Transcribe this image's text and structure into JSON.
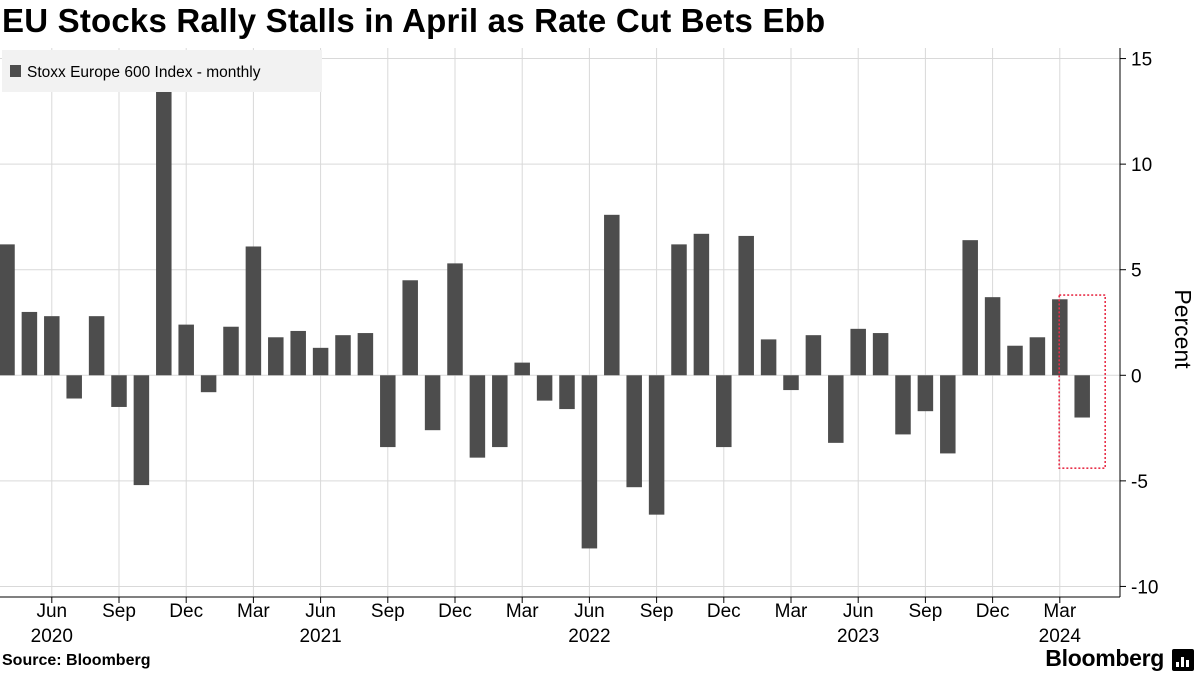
{
  "title": "EU Stocks Rally Stalls in April as Rate Cut Bets Ebb",
  "source": "Source: Bloomberg",
  "brand": "Bloomberg",
  "brand_icon": "bloomberg-chart-logo-icon",
  "colors": {
    "bar": "#4d4d4d",
    "grid": "#d9d9d9",
    "highlight": "#e8304a",
    "legend_bg": "#f2f2f2"
  },
  "chart_data": {
    "type": "bar",
    "title": "EU Stocks Rally Stalls in April as Rate Cut Bets Ebb",
    "legend": [
      "Stoxx Europe 600 Index - monthly"
    ],
    "legend_position": "top-left",
    "ylabel": "Percent",
    "ylim": [
      -10.5,
      15.5
    ],
    "yticks": [
      15,
      10,
      5,
      0,
      -5,
      -10
    ],
    "grid": true,
    "xtick_labels": [
      {
        "index": 2,
        "month": "Jun",
        "year": "2020"
      },
      {
        "index": 5,
        "month": "Sep",
        "year": ""
      },
      {
        "index": 8,
        "month": "Dec",
        "year": ""
      },
      {
        "index": 11,
        "month": "Mar",
        "year": ""
      },
      {
        "index": 14,
        "month": "Jun",
        "year": "2021"
      },
      {
        "index": 17,
        "month": "Sep",
        "year": ""
      },
      {
        "index": 20,
        "month": "Dec",
        "year": ""
      },
      {
        "index": 23,
        "month": "Mar",
        "year": ""
      },
      {
        "index": 26,
        "month": "Jun",
        "year": "2022"
      },
      {
        "index": 29,
        "month": "Sep",
        "year": ""
      },
      {
        "index": 32,
        "month": "Dec",
        "year": ""
      },
      {
        "index": 35,
        "month": "Mar",
        "year": ""
      },
      {
        "index": 38,
        "month": "Jun",
        "year": "2023"
      },
      {
        "index": 41,
        "month": "Sep",
        "year": ""
      },
      {
        "index": 44,
        "month": "Dec",
        "year": ""
      },
      {
        "index": 47,
        "month": "Mar",
        "year": "2024"
      }
    ],
    "categories": [
      "Apr 2020",
      "May 2020",
      "Jun 2020",
      "Jul 2020",
      "Aug 2020",
      "Sep 2020",
      "Oct 2020",
      "Nov 2020",
      "Dec 2020",
      "Jan 2021",
      "Feb 2021",
      "Mar 2021",
      "Apr 2021",
      "May 2021",
      "Jun 2021",
      "Jul 2021",
      "Aug 2021",
      "Sep 2021",
      "Oct 2021",
      "Nov 2021",
      "Dec 2021",
      "Jan 2022",
      "Feb 2022",
      "Mar 2022",
      "Apr 2022",
      "May 2022",
      "Jun 2022",
      "Jul 2022",
      "Aug 2022",
      "Sep 2022",
      "Oct 2022",
      "Nov 2022",
      "Dec 2022",
      "Jan 2023",
      "Feb 2023",
      "Mar 2023",
      "Apr 2023",
      "May 2023",
      "Jun 2023",
      "Jul 2023",
      "Aug 2023",
      "Sep 2023",
      "Oct 2023",
      "Nov 2023",
      "Dec 2023",
      "Jan 2024",
      "Feb 2024",
      "Mar 2024",
      "Apr 2024"
    ],
    "values": [
      6.2,
      3.0,
      2.8,
      -1.1,
      2.8,
      -1.5,
      -5.2,
      13.7,
      2.4,
      -0.8,
      2.3,
      6.1,
      1.8,
      2.1,
      1.3,
      1.9,
      2.0,
      -3.4,
      4.5,
      -2.6,
      5.3,
      -3.9,
      -3.4,
      0.6,
      -1.2,
      -1.6,
      -8.2,
      7.6,
      -5.3,
      -6.6,
      6.2,
      6.7,
      -3.4,
      6.6,
      1.7,
      -0.7,
      1.9,
      -3.2,
      2.2,
      2.0,
      -2.8,
      -1.7,
      -3.7,
      6.4,
      3.7,
      1.4,
      1.8,
      3.6,
      -2.0
    ],
    "highlight_category": "Apr 2024"
  }
}
